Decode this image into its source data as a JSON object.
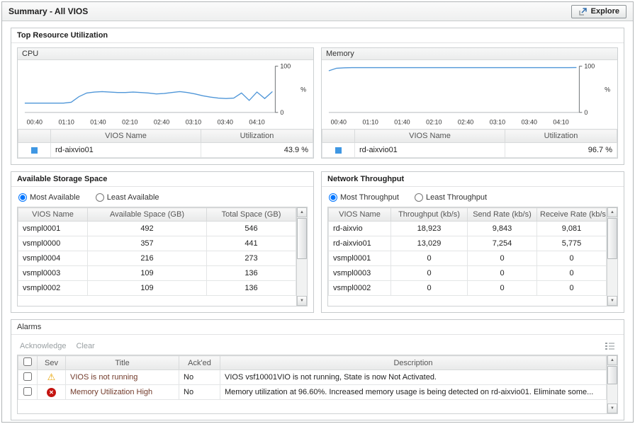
{
  "titlebar": {
    "title": "Summary - All VIOS",
    "explore": "Explore"
  },
  "top_resource": {
    "title": "Top Resource Utilization",
    "cpu": {
      "box_title": "CPU",
      "legend_headers": [
        "VIOS Name",
        "Utilization"
      ],
      "legend_row": {
        "name": "rd-aixvio01",
        "value": "43.9 %"
      }
    },
    "memory": {
      "box_title": "Memory",
      "legend_headers": [
        "VIOS Name",
        "Utilization"
      ],
      "legend_row": {
        "name": "rd-aixvio01",
        "value": "96.7 %"
      }
    }
  },
  "storage": {
    "title": "Available Storage Space",
    "options": [
      "Most Available",
      "Least Available"
    ],
    "selected_option": 0,
    "headers": [
      "VIOS Name",
      "Available Space (GB)",
      "Total Space (GB)"
    ],
    "rows": [
      [
        "vsmpl0001",
        "492",
        "546"
      ],
      [
        "vsmpl0000",
        "357",
        "441"
      ],
      [
        "vsmpl0004",
        "216",
        "273"
      ],
      [
        "vsmpl0003",
        "109",
        "136"
      ],
      [
        "vsmpl0002",
        "109",
        "136"
      ]
    ]
  },
  "network": {
    "title": "Network Throughput",
    "options": [
      "Most Throughput",
      "Least Throughput"
    ],
    "selected_option": 0,
    "headers": [
      "VIOS Name",
      "Throughput (kb/s)",
      "Send Rate (kb/s)",
      "Receive Rate (kb/s)"
    ],
    "rows": [
      [
        "rd-aixvio",
        "18,923",
        "9,843",
        "9,081"
      ],
      [
        "rd-aixvio01",
        "13,029",
        "7,254",
        "5,775"
      ],
      [
        "vsmpl0001",
        "0",
        "0",
        "0"
      ],
      [
        "vsmpl0003",
        "0",
        "0",
        "0"
      ],
      [
        "vsmpl0002",
        "0",
        "0",
        "0"
      ]
    ]
  },
  "alarms": {
    "title": "Alarms",
    "toolbar": {
      "acknowledge": "Acknowledge",
      "clear": "Clear"
    },
    "headers": [
      "Sev",
      "Title",
      "Ack'ed",
      "Description"
    ],
    "rows": [
      {
        "sev": "warning",
        "title": "VIOS is not running",
        "acked": "No",
        "description": "VIOS vsf10001VIO is not running, State is now Not Activated."
      },
      {
        "sev": "error",
        "title": "Memory Utilization High",
        "acked": "No",
        "description": "Memory utilization at 96.60%. Increased memory usage is being detected on rd-aixvio01. Eliminate some..."
      }
    ]
  },
  "chart_data": [
    {
      "type": "line",
      "title": "CPU",
      "ylabel": "%",
      "ylim": [
        0,
        100
      ],
      "x_ticks": [
        "00:40",
        "01:10",
        "01:40",
        "02:10",
        "02:40",
        "03:10",
        "03:40",
        "04:10"
      ],
      "line_color": "#4f96d8",
      "series": [
        {
          "name": "rd-aixvio01",
          "values": [
            20,
            20,
            20,
            20,
            20,
            20,
            22,
            34,
            42,
            44,
            45,
            44,
            43,
            43,
            44,
            43,
            42,
            40,
            41,
            43,
            45,
            43,
            40,
            36,
            33,
            31,
            30,
            31,
            42,
            26,
            44,
            30,
            45
          ]
        }
      ]
    },
    {
      "type": "line",
      "title": "Memory",
      "ylabel": "%",
      "ylim": [
        0,
        100
      ],
      "x_ticks": [
        "00:40",
        "01:10",
        "01:40",
        "02:10",
        "02:40",
        "03:10",
        "03:40",
        "04:10"
      ],
      "line_color": "#4f96d8",
      "series": [
        {
          "name": "rd-aixvio01",
          "values": [
            90,
            95.5,
            96.5,
            96.7,
            96.7,
            96.7,
            96.7,
            96.7,
            96.7,
            96.7,
            96.7,
            96.7,
            96.7,
            96.7,
            96.7,
            96.7,
            96.7,
            96.7,
            96.7,
            96.7,
            96.7,
            96.7,
            96.7,
            96.7,
            96.7,
            96.7,
            96.7,
            96.7,
            96.7,
            96.7,
            96.7,
            96.7,
            97
          ]
        }
      ]
    }
  ],
  "colors": {
    "line": "#4f96d8",
    "legend_swatch": "#3f97e3",
    "warning": "#e8a400",
    "error": "#c41410"
  }
}
